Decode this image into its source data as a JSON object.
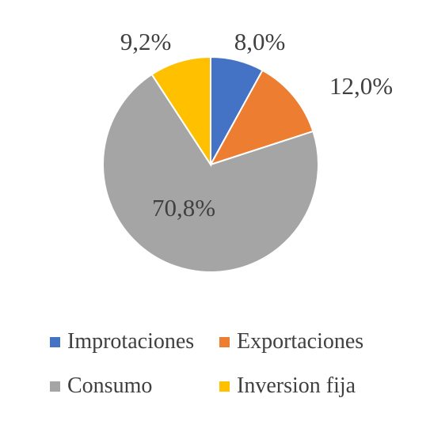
{
  "chart_data": {
    "type": "pie",
    "title": "",
    "slices": [
      {
        "name": "Improtaciones",
        "value": 8.0,
        "label": "8,0%",
        "color": "#4472C4"
      },
      {
        "name": "Exportaciones",
        "value": 12.0,
        "label": "12,0%",
        "color": "#ED7D31"
      },
      {
        "name": "Consumo",
        "value": 70.8,
        "label": "70,8%",
        "color": "#A5A5A5"
      },
      {
        "name": "Inversion fija",
        "value": 9.2,
        "label": "9,2%",
        "color": "#FFC000"
      }
    ],
    "start_angle": "12 o'clock",
    "direction": "clockwise",
    "legend_position": "bottom"
  }
}
